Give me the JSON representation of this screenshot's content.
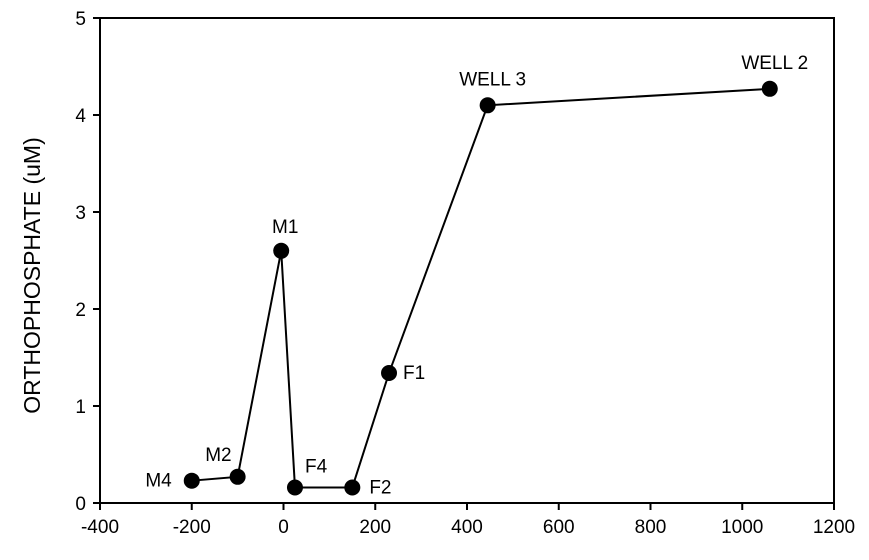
{
  "chart_data": {
    "type": "line",
    "title": "",
    "xlabel": "",
    "ylabel": "ORTHOPHOSPHATE (uM)",
    "xlim": [
      -400,
      1200
    ],
    "ylim": [
      0,
      5
    ],
    "xticks": [
      "-400",
      "-200",
      "0",
      "200",
      "400",
      "600",
      "800",
      "1000",
      "1200"
    ],
    "yticks": [
      "0",
      "1",
      "2",
      "3",
      "4",
      "5"
    ],
    "grid": false,
    "series": [
      {
        "points": [
          {
            "label": "M4",
            "x": -200,
            "y": 0.23
          },
          {
            "label": "M2",
            "x": -100,
            "y": 0.27
          },
          {
            "label": "M1",
            "x": -5,
            "y": 2.6
          },
          {
            "label": "F4",
            "x": 25,
            "y": 0.16
          },
          {
            "label": "F2",
            "x": 150,
            "y": 0.16
          },
          {
            "label": "F1",
            "x": 230,
            "y": 1.34
          },
          {
            "label": "WELL 3",
            "x": 445,
            "y": 4.1
          },
          {
            "label": "WELL 2",
            "x": 1060,
            "y": 4.27
          }
        ]
      }
    ]
  }
}
